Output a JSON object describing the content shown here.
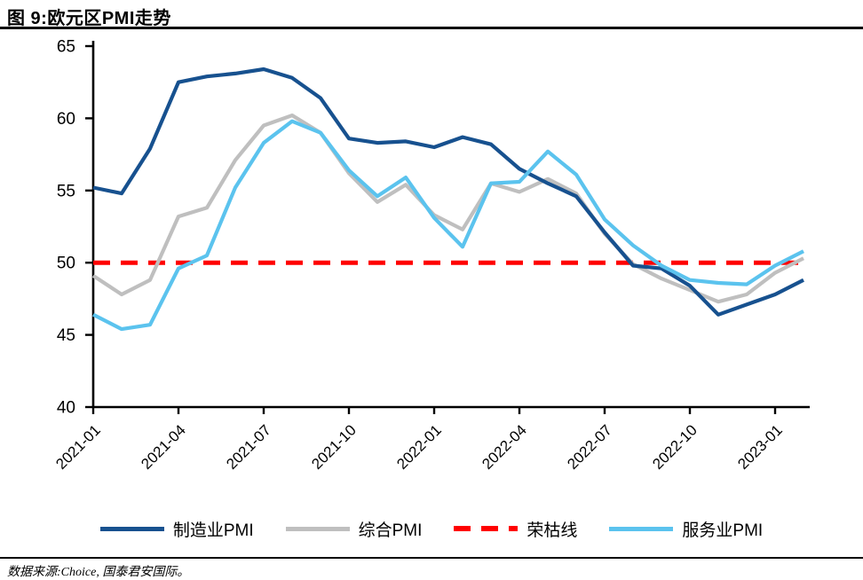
{
  "figure": {
    "title": "图 9:欧元区PMI走势",
    "source_note": "数据来源:Choice, 国泰君安国际。"
  },
  "chart_data": {
    "type": "line",
    "title": "图 9:欧元区PMI走势",
    "x": [
      "2021-01",
      "2021-02",
      "2021-03",
      "2021-04",
      "2021-05",
      "2021-06",
      "2021-07",
      "2021-08",
      "2021-09",
      "2021-10",
      "2021-11",
      "2021-12",
      "2022-01",
      "2022-02",
      "2022-03",
      "2022-04",
      "2022-05",
      "2022-06",
      "2022-07",
      "2022-08",
      "2022-09",
      "2022-10",
      "2022-11",
      "2022-12",
      "2023-01",
      "2023-02"
    ],
    "x_tick_labels": [
      "2021-01",
      "2021-04",
      "2021-07",
      "2021-10",
      "2022-01",
      "2022-04",
      "2022-07",
      "2022-10",
      "2023-01"
    ],
    "xlabel": "",
    "ylabel": "",
    "ylim": [
      40,
      65
    ],
    "yticks": [
      40,
      45,
      50,
      55,
      60,
      65
    ],
    "grid": false,
    "legend_position": "bottom",
    "axis_color": "#000000",
    "draw_order": [
      "荣枯线",
      "综合PMI",
      "制造业PMI",
      "服务业PMI"
    ],
    "series": [
      {
        "name": "制造业PMI",
        "color": "#17518F",
        "line_style": "solid",
        "values": [
          55.2,
          54.8,
          57.9,
          62.5,
          62.9,
          63.1,
          63.4,
          62.8,
          61.4,
          58.6,
          58.3,
          58.4,
          58.0,
          58.7,
          58.2,
          56.5,
          55.5,
          54.6,
          52.1,
          49.8,
          49.6,
          48.4,
          46.4,
          47.1,
          47.8,
          48.8
        ]
      },
      {
        "name": "综合PMI",
        "color": "#BFBFBF",
        "line_style": "solid",
        "values": [
          49.1,
          47.8,
          48.8,
          53.2,
          53.8,
          57.1,
          59.5,
          60.2,
          59.0,
          56.2,
          54.2,
          55.4,
          53.3,
          52.3,
          55.5,
          54.9,
          55.8,
          54.8,
          52.0,
          49.9,
          48.9,
          48.1,
          47.3,
          47.8,
          49.3,
          50.3
        ]
      },
      {
        "name": "荣枯线",
        "color": "#FF0000",
        "line_style": "dashed",
        "constant": 50
      },
      {
        "name": "服务业PMI",
        "color": "#5BC3EE",
        "line_style": "solid",
        "values": [
          46.4,
          45.4,
          45.7,
          49.6,
          50.5,
          55.2,
          58.3,
          59.8,
          59.0,
          56.4,
          54.6,
          55.9,
          53.1,
          51.1,
          55.5,
          55.6,
          57.7,
          56.1,
          53.0,
          51.2,
          49.8,
          48.8,
          48.6,
          48.5,
          49.8,
          50.8
        ]
      }
    ]
  }
}
